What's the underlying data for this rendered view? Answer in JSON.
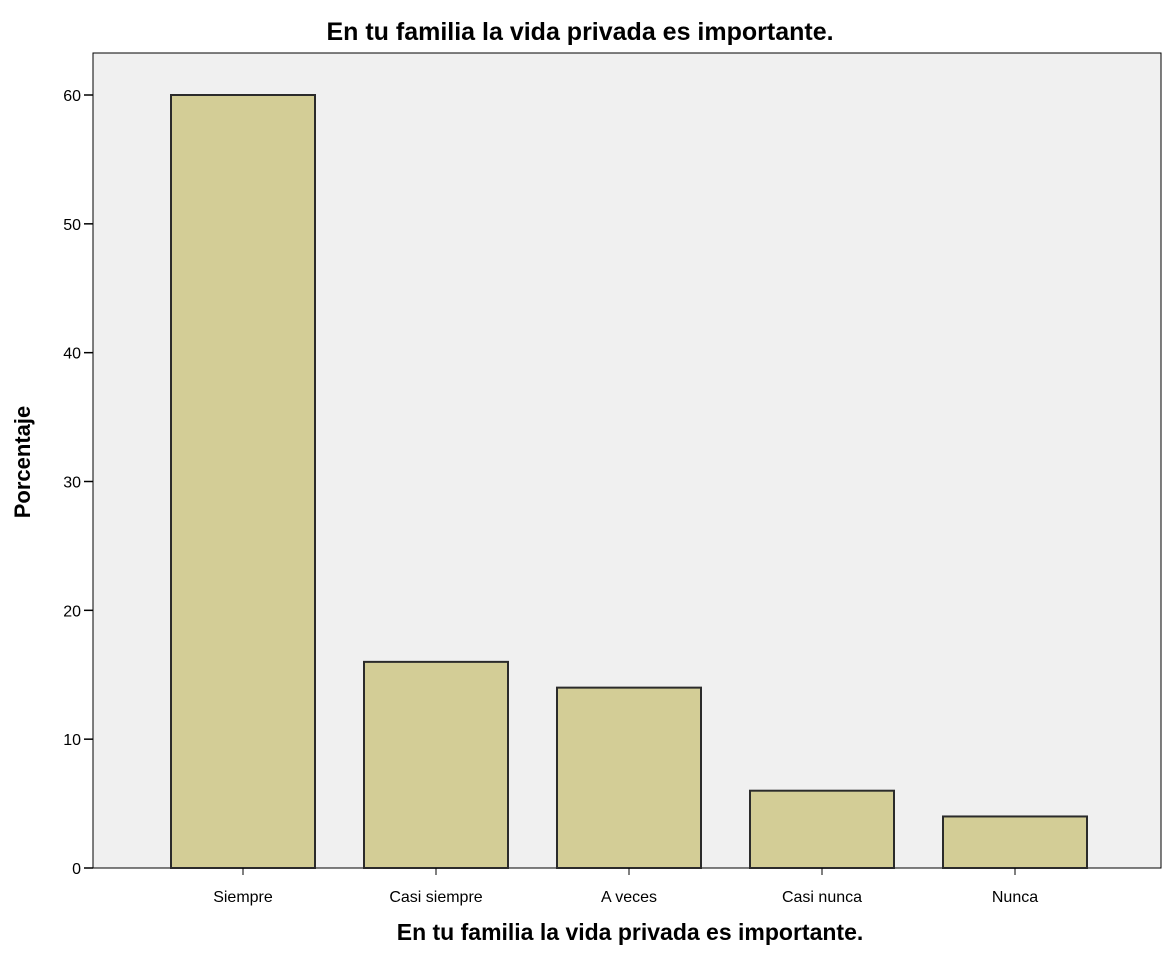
{
  "chart_data": {
    "type": "bar",
    "title": "En tu familia la vida privada es importante.",
    "xlabel": "En tu familia la vida privada es importante.",
    "ylabel": "Porcentaje",
    "categories": [
      "Siempre",
      "Casi siempre",
      "A veces",
      "Casi nunca",
      "Nunca"
    ],
    "values": [
      60,
      16,
      14,
      6,
      4
    ],
    "ylim": [
      0,
      65
    ],
    "yticks": [
      0,
      10,
      20,
      30,
      40,
      50,
      60
    ],
    "grid": false,
    "legend": "none",
    "colors": {
      "bar_fill": "#d3cd96",
      "bar_stroke": "#2b2b2b",
      "plot_background": "#f0f0f0",
      "axis": "#000000"
    }
  }
}
